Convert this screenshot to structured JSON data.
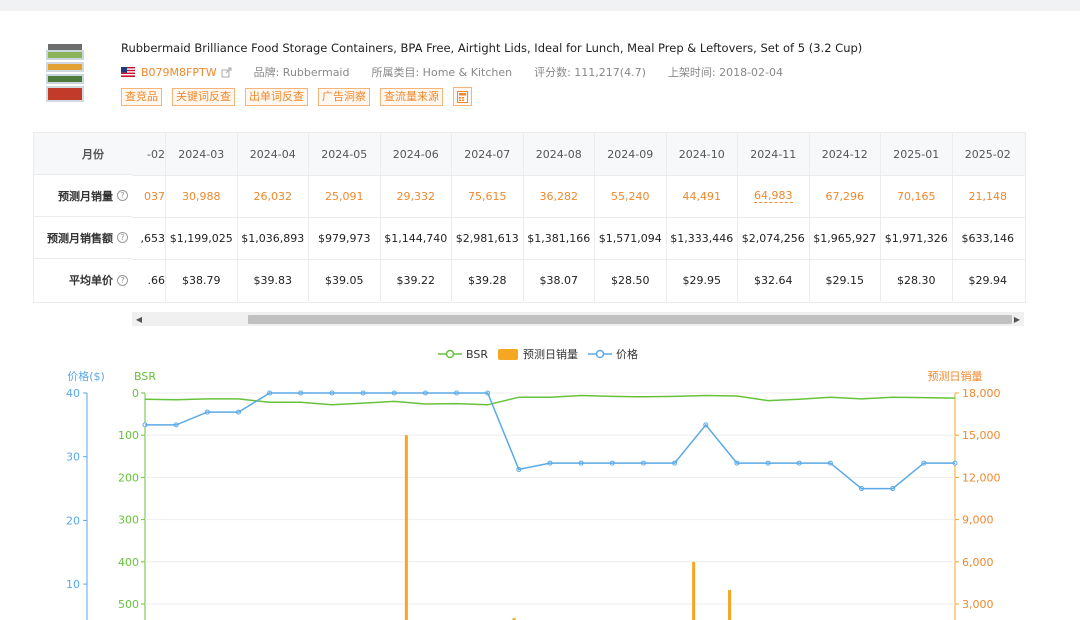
{
  "product": {
    "title": "Rubbermaid Brilliance Food Storage Containers, BPA Free, Airtight Lids, Ideal for Lunch, Meal Prep & Leftovers, Set of 5 (3.2 Cup)",
    "asin": "B079M8FPTW",
    "brand": "品牌: Rubbermaid",
    "category": "所属类目: Home & Kitchen",
    "rating": "评分数: 111,217(4.7)",
    "listed": "上架时间: 2018-02-04",
    "icons": {
      "flag": "us-flag-icon",
      "external": "external-link-icon",
      "calculator": "calculator-icon",
      "thumbnail": "product-thumbnail"
    }
  },
  "actions": [
    "查竞品",
    "关键词反查",
    "出单词反查",
    "广告洞察",
    "查流量来源"
  ],
  "table": {
    "row_labels": {
      "month": "月份",
      "units": "预测月销量",
      "revenue": "预测月销售额",
      "price": "平均单价"
    },
    "months": [
      "-02",
      "2024-03",
      "2024-04",
      "2024-05",
      "2024-06",
      "2024-07",
      "2024-08",
      "2024-09",
      "2024-10",
      "2024-11",
      "2024-12",
      "2025-01",
      "2025-02"
    ],
    "units": [
      "037",
      "30,988",
      "26,032",
      "25,091",
      "29,332",
      "75,615",
      "36,282",
      "55,240",
      "44,491",
      "64,983",
      "67,296",
      "70,165",
      "21,148"
    ],
    "revenue": [
      ",653",
      "$1,199,025",
      "$1,036,893",
      "$979,973",
      "$1,144,740",
      "$2,981,613",
      "$1,381,166",
      "$1,571,094",
      "$1,333,446",
      "$2,074,256",
      "$1,965,927",
      "$1,971,326",
      "$633,146"
    ],
    "price": [
      ".66",
      "$38.79",
      "$39.83",
      "$39.05",
      "$39.22",
      "$39.28",
      "$38.07",
      "$28.50",
      "$29.95",
      "$32.64",
      "$29.15",
      "$28.30",
      "$29.94"
    ]
  },
  "chart_data": {
    "type": "line",
    "legend": [
      "BSR",
      "预测日销量",
      "价格"
    ],
    "axes": {
      "price": {
        "title": "价格($)",
        "ticks": [
          "40",
          "30",
          "20",
          "10"
        ]
      },
      "bsr": {
        "title": "BSR",
        "ticks": [
          "0",
          "100",
          "200",
          "300",
          "400",
          "500"
        ]
      },
      "sales": {
        "title": "预测日销量",
        "ticks": [
          "18,000",
          "15,000",
          "12,000",
          "9,000",
          "6,000",
          "3,000"
        ]
      }
    },
    "colors": {
      "bsr": "#67c23a",
      "sales": "#f5a623",
      "price": "#5aa9e6"
    },
    "series_price": [
      35,
      35,
      37,
      37,
      40,
      40,
      40,
      40,
      40,
      40,
      40,
      40,
      28,
      29,
      29,
      29,
      29,
      29,
      35,
      29,
      29,
      29,
      29,
      25,
      25,
      29,
      29
    ],
    "series_bsr": [
      15,
      16,
      14,
      14,
      22,
      22,
      28,
      24,
      20,
      26,
      25,
      28,
      10,
      10,
      6,
      8,
      9,
      8,
      6,
      7,
      18,
      15,
      10,
      14,
      10,
      11,
      12
    ],
    "series_sales": [
      500,
      200,
      100,
      100,
      200,
      100,
      100,
      15000,
      400,
      200,
      2000,
      200,
      200,
      800,
      300,
      6000,
      4000,
      600,
      300,
      900,
      1500,
      1700,
      1200
    ]
  }
}
